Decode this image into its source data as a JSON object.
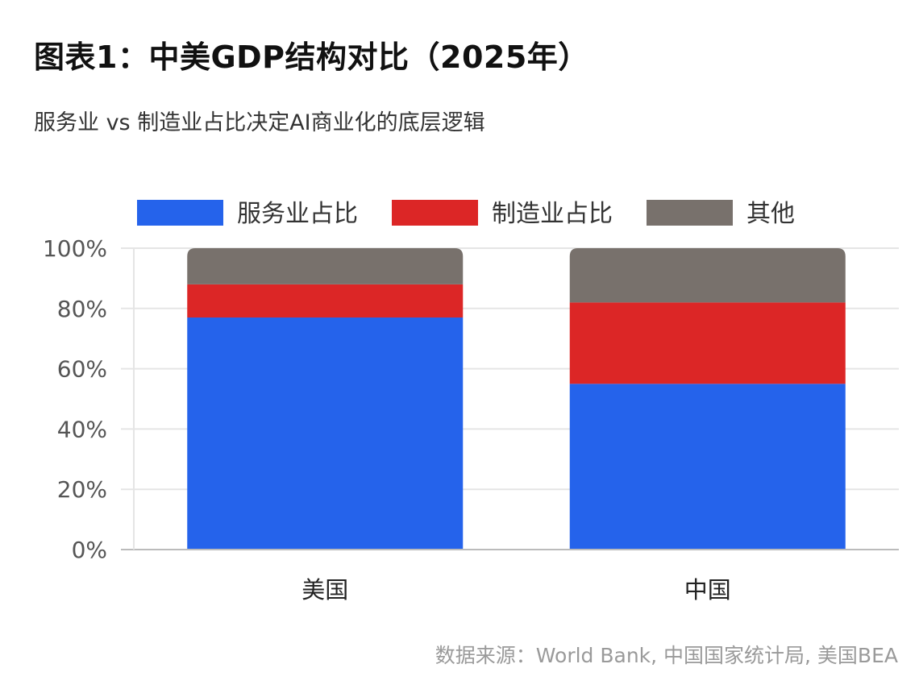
{
  "header": {
    "title": "图表1：中美GDP结构对比（2025年）",
    "subtitle": "服务业 vs 制造业占比决定AI商业化的底层逻辑"
  },
  "footer": {
    "source": "数据来源：World Bank, 中国国家统计局, 美国BEA"
  },
  "colors": {
    "services": "#2563EB",
    "manufacturing": "#DC2626",
    "other": "#78716C",
    "grid": "#E5E5E5",
    "axis": "#BBBBBB",
    "tick_text": "#555555",
    "category_text": "#222222"
  },
  "chart_data": {
    "type": "bar",
    "stacked": true,
    "categories": [
      "美国",
      "中国"
    ],
    "series": [
      {
        "name": "服务业占比",
        "values": [
          77,
          55
        ],
        "color_key": "services"
      },
      {
        "name": "制造业占比",
        "values": [
          11,
          27
        ],
        "color_key": "manufacturing"
      },
      {
        "name": "其他",
        "values": [
          12,
          18
        ],
        "color_key": "other"
      }
    ],
    "ylim": [
      0,
      100
    ],
    "yticks": [
      0,
      20,
      40,
      60,
      80,
      100
    ],
    "ytick_labels": [
      "0%",
      "20%",
      "40%",
      "60%",
      "80%",
      "100%"
    ],
    "grid": true,
    "legend_position": "top"
  }
}
